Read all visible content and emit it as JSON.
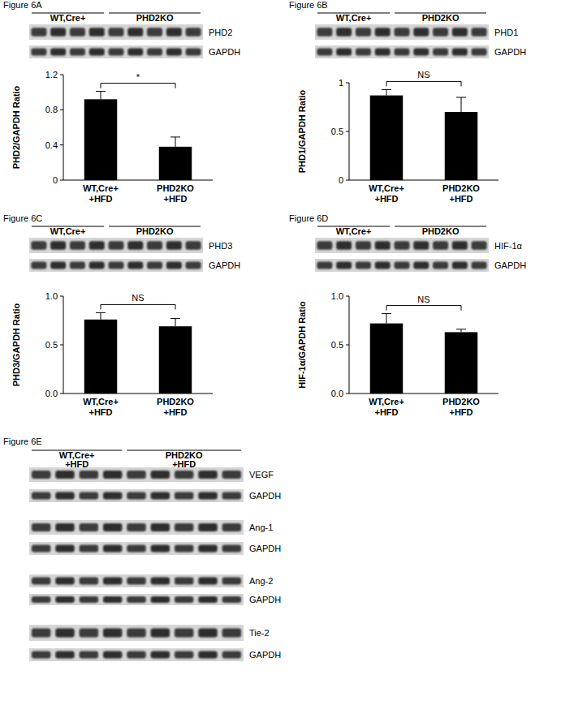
{
  "chart_data": [
    {
      "type": "bar",
      "title": "Figure 6A",
      "y_label": "PHD2/GAPDH Ratio",
      "categories": [
        "WT,Cre+\n+HFD",
        "PHD2KO\n+HFD"
      ],
      "values": [
        0.92,
        0.38
      ],
      "errors": [
        0.09,
        0.11
      ],
      "color": "#000000",
      "ylim": [
        0,
        1.2
      ],
      "yticks": [
        0,
        0.4,
        0.8,
        1.2
      ],
      "grid": false,
      "annotation": "*",
      "blot": {
        "groups": [
          "WT,Cre+",
          "PHD2KO"
        ],
        "lanes": [
          4,
          5
        ],
        "bands": [
          "PHD2",
          "GAPDH"
        ]
      }
    },
    {
      "type": "bar",
      "title": "Figure 6B",
      "y_label": "PHD1/GAPDH Ratio",
      "categories": [
        "WT,Cre+\n+HFD",
        "PHD2KO\n+HFD"
      ],
      "values": [
        0.87,
        0.7
      ],
      "errors": [
        0.06,
        0.15
      ],
      "color": "#000000",
      "ylim": [
        0,
        1
      ],
      "yticks": [
        0,
        0.5,
        1
      ],
      "grid": false,
      "annotation": "NS",
      "blot": {
        "groups": [
          "WT,Cre+",
          "PHD2KO"
        ],
        "lanes": [
          4,
          5
        ],
        "bands": [
          "PHD1",
          "GAPDH"
        ]
      }
    },
    {
      "type": "bar",
      "title": "Figure 6C",
      "y_label": "PHD3/GAPDH Ratio",
      "categories": [
        "WT,Cre+\n+HFD",
        "PHD2KO\n+HFD"
      ],
      "values": [
        0.76,
        0.69
      ],
      "errors": [
        0.07,
        0.08
      ],
      "color": "#000000",
      "ylim": [
        0,
        1
      ],
      "yticks": [
        {
          "value": 0,
          "label": "0.0"
        },
        0.5,
        {
          "value": 1,
          "label": "1.0"
        }
      ],
      "grid": false,
      "annotation": "NS",
      "blot": {
        "groups": [
          "WT,Cre+",
          "PHD2KO"
        ],
        "lanes": [
          4,
          5
        ],
        "bands": [
          "PHD3",
          "GAPDH"
        ]
      }
    },
    {
      "type": "bar",
      "title": "Figure 6D",
      "y_label": "HIF-1α/GAPDH Ratio",
      "categories": [
        "WT,Cre+\n+HFD",
        "PHD2KO\n+HFD"
      ],
      "values": [
        0.72,
        0.63
      ],
      "errors": [
        0.1,
        0.03
      ],
      "color": "#000000",
      "ylim": [
        0,
        1
      ],
      "yticks": [
        {
          "value": 0,
          "label": "0.0"
        },
        0.5,
        {
          "value": 1,
          "label": "1.0"
        }
      ],
      "grid": false,
      "annotation": "NS",
      "blot": {
        "groups": [
          "WT,Cre+",
          "PHD2KO"
        ],
        "lanes": [
          4,
          5
        ],
        "bands": [
          "HIF-1α",
          "GAPDH"
        ]
      }
    }
  ],
  "figure_6e": {
    "title": "Figure 6E",
    "groups": [
      "WT,Cre+\n+HFD",
      "PHD2KO\n+HFD"
    ],
    "lanes": [
      4,
      5
    ],
    "bands": [
      "VEGF",
      "GAPDH",
      "Ang-1",
      "GAPDH",
      "Ang-2",
      "GAPDH",
      "Tie-2",
      "GAPDH"
    ]
  }
}
